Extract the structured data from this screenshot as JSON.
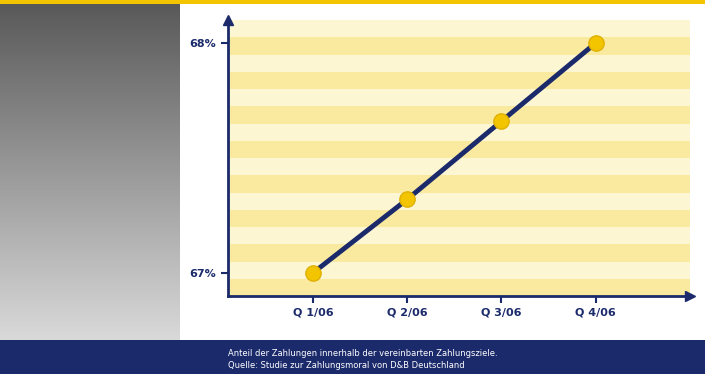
{
  "chart_data": {
    "type": "line",
    "categories": [
      "Q 1/06",
      "Q 2/06",
      "Q 3/06",
      "Q 4/06"
    ],
    "values": [
      67.0,
      67.32,
      67.66,
      68.0
    ],
    "color": "#1b2a6b",
    "marker": "o",
    "line_style": "solid",
    "ylim": [
      66.9,
      68.1
    ],
    "yticks": [
      {
        "value": 67,
        "label": "67%"
      },
      {
        "value": 68,
        "label": "68%"
      }
    ],
    "grid": false,
    "annotations": [
      "Anteil der Zahlungen innerhalb der vereinbarten Zahlungsziele.",
      "Quelle: Studie zur Zahlungsmoral von D&B Deutschland"
    ]
  }
}
